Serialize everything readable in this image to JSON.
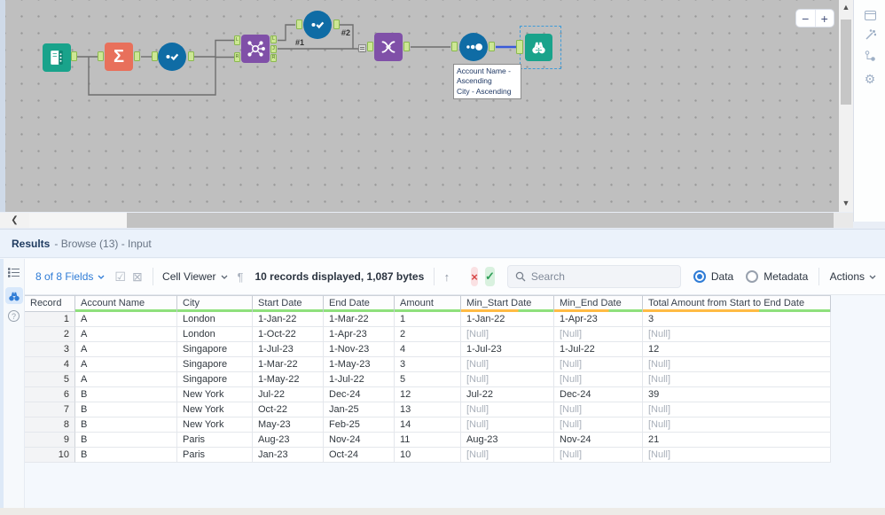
{
  "canvas": {
    "zoom_controls": {
      "minus": "−",
      "plus": "+"
    },
    "connection_labels": {
      "join_output": "#1",
      "formula_output": "#2"
    },
    "tooltip": {
      "line1": "Account Name -",
      "line2": "Ascending",
      "line3": "City - Ascending"
    },
    "join_anchor_letters": {
      "in_left": "L",
      "in_right": "R",
      "out_left": "L",
      "out_join": "J",
      "out_right": "R"
    },
    "tools": [
      {
        "name": "input-data-tool",
        "color": "#19a38b"
      },
      {
        "name": "summarize-tool",
        "color": "#e8705b",
        "glyph": "Σ"
      },
      {
        "name": "multi-row-formula-tool",
        "color": "#0f6ca5"
      },
      {
        "name": "join-tool",
        "color": "#8050a8"
      },
      {
        "name": "multi-row-formula-tool-2",
        "color": "#0f6ca5"
      },
      {
        "name": "union-tool",
        "color": "#8050a8"
      },
      {
        "name": "sort-tool",
        "color": "#0f6ca5"
      },
      {
        "name": "browse-tool",
        "color": "#19a38b"
      }
    ]
  },
  "results": {
    "title": "Results",
    "subtitle": "- Browse (13) - Input",
    "toolbar": {
      "fields_selector": "8 of 8 Fields",
      "cell_viewer": "Cell Viewer",
      "pilcrow": "¶",
      "records_info": "10 records displayed, 1,087 bytes",
      "up_arrow": "↑",
      "cancel_glyph": "×",
      "confirm_glyph": "✓",
      "search_placeholder": "Search",
      "data_label": "Data",
      "metadata_label": "Metadata",
      "actions_label": "Actions",
      "checkbox_glyph": "☑",
      "xbox_glyph": "⊠"
    },
    "table": {
      "columns": [
        {
          "label": "Record",
          "quality": "none"
        },
        {
          "label": "Account Name",
          "quality": "green"
        },
        {
          "label": "City",
          "quality": "green"
        },
        {
          "label": "Start Date",
          "quality": "green"
        },
        {
          "label": "End Date",
          "quality": "green"
        },
        {
          "label": "Amount",
          "quality": "green"
        },
        {
          "label": "Min_Start Date",
          "quality": "mixed"
        },
        {
          "label": "Min_End Date",
          "quality": "mixed"
        },
        {
          "label": "Total Amount from Start to End Date",
          "quality": "mixed"
        }
      ],
      "rows": [
        [
          "1",
          "A",
          "London",
          "1-Jan-22",
          "1-Mar-22",
          "1",
          "1-Jan-22",
          "1-Apr-23",
          "3"
        ],
        [
          "2",
          "A",
          "London",
          "1-Oct-22",
          "1-Apr-23",
          "2",
          "[Null]",
          "[Null]",
          "[Null]"
        ],
        [
          "3",
          "A",
          "Singapore",
          "1-Jul-23",
          "1-Nov-23",
          "4",
          "1-Jul-23",
          "1-Jul-22",
          "12"
        ],
        [
          "4",
          "A",
          "Singapore",
          "1-Mar-22",
          "1-May-23",
          "3",
          "[Null]",
          "[Null]",
          "[Null]"
        ],
        [
          "5",
          "A",
          "Singapore",
          "1-May-22",
          "1-Jul-22",
          "5",
          "[Null]",
          "[Null]",
          "[Null]"
        ],
        [
          "6",
          "B",
          "New York",
          "Jul-22",
          "Dec-24",
          "12",
          "Jul-22",
          "Dec-24",
          "39"
        ],
        [
          "7",
          "B",
          "New York",
          "Oct-22",
          "Jan-25",
          "13",
          "[Null]",
          "[Null]",
          "[Null]"
        ],
        [
          "8",
          "B",
          "New York",
          "May-23",
          "Feb-25",
          "14",
          "[Null]",
          "[Null]",
          "[Null]"
        ],
        [
          "9",
          "B",
          "Paris",
          "Aug-23",
          "Nov-24",
          "11",
          "Aug-23",
          "Nov-24",
          "21"
        ],
        [
          "10",
          "B",
          "Paris",
          "Jan-23",
          "Oct-24",
          "10",
          "[Null]",
          "[Null]",
          "[Null]"
        ]
      ]
    }
  },
  "colors": {
    "accent_blue": "#2f7cd6",
    "quality_green": "#8fe07c",
    "quality_orange": "#ffbb44",
    "selection_blue": "#3e9bd8",
    "selected_wire": "#3a5bd9",
    "canvas_gray": "#bfbfbf"
  }
}
